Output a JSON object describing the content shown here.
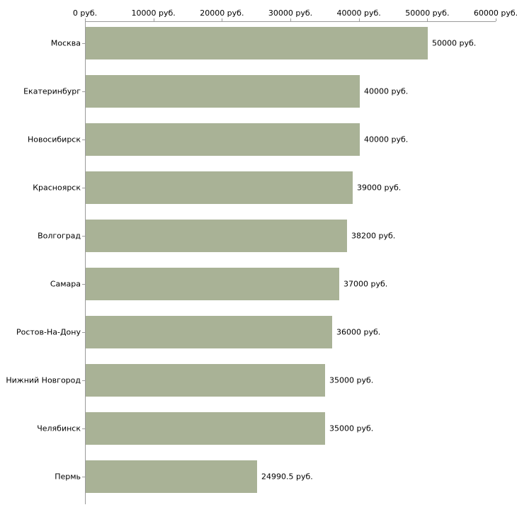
{
  "chart_data": {
    "type": "bar",
    "orientation": "horizontal",
    "title": "",
    "xlabel": "",
    "ylabel": "",
    "grid": false,
    "legend": null,
    "categories": [
      "Москва",
      "Екатеринбург",
      "Новосибирск",
      "Красноярск",
      "Волгоград",
      "Самара",
      "Ростов-На-Дону",
      "Нижний Новгород",
      "Челябинск",
      "Пермь"
    ],
    "values": [
      50000,
      40000,
      40000,
      39000,
      38200,
      37000,
      36000,
      35000,
      35000,
      24990.5
    ],
    "value_labels": [
      "50000 руб.",
      "40000 руб.",
      "40000 руб.",
      "39000 руб.",
      "38200 руб.",
      "37000 руб.",
      "36000 руб.",
      "35000 руб.",
      "35000 руб.",
      "24990.5 руб."
    ],
    "xlim": [
      0,
      60000
    ],
    "x_ticks": [
      0,
      10000,
      20000,
      30000,
      40000,
      50000,
      60000
    ],
    "x_tick_labels": [
      "0 руб.",
      "10000 руб.",
      "20000 руб.",
      "30000 руб.",
      "40000 руб.",
      "50000 руб.",
      "60000 руб."
    ],
    "bar_color": "#a9b296",
    "axis_color": "#9b9b9b",
    "text_color": "#000000"
  }
}
